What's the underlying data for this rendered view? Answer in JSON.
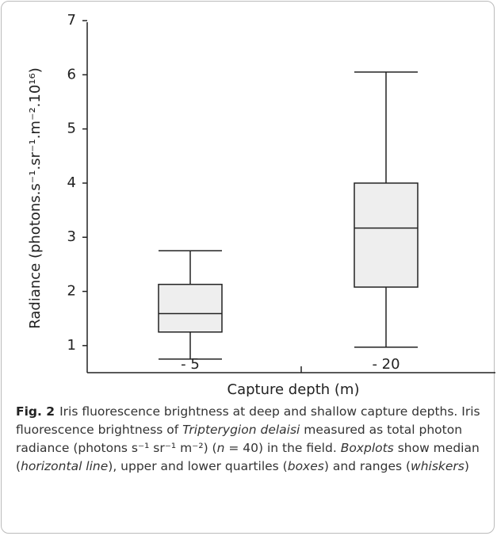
{
  "chart_data": {
    "type": "box",
    "ylabel": "Radiance (photons.s⁻¹.sr⁻¹.m⁻².10¹⁶)",
    "xlabel": "Capture depth (m)",
    "categories": [
      "- 5",
      "- 20"
    ],
    "boxes": [
      {
        "min": 0.75,
        "q1": 1.25,
        "median": 1.59,
        "q3": 2.13,
        "max": 2.75
      },
      {
        "min": 0.97,
        "q1": 2.08,
        "median": 3.17,
        "q3": 4.0,
        "max": 6.05
      }
    ],
    "color": "#eeeeee",
    "ylim": [
      0.5,
      7
    ],
    "yticks": [
      1,
      2,
      3,
      4,
      5,
      6,
      7
    ],
    "grid": false
  },
  "caption": {
    "label": "Fig. 2",
    "runs": [
      {
        "text": "Iris fluorescence brightness at deep and shallow capture depths. Iris fluorescence brightness of ",
        "italic": false
      },
      {
        "text": "Tripterygion delaisi",
        "italic": true
      },
      {
        "text": " measured as total photon radiance (photons s⁻¹ sr⁻¹ m⁻²) (",
        "italic": false
      },
      {
        "text": "n",
        "italic": true
      },
      {
        "text": " = 40) in the field. ",
        "italic": false
      },
      {
        "text": "Boxplots",
        "italic": true
      },
      {
        "text": " show median (",
        "italic": false
      },
      {
        "text": "horizontal line",
        "italic": true
      },
      {
        "text": "), upper and lower quartiles (",
        "italic": false
      },
      {
        "text": "boxes",
        "italic": true
      },
      {
        "text": ") and ranges (",
        "italic": false
      },
      {
        "text": "whiskers",
        "italic": true
      },
      {
        "text": ")",
        "italic": false
      }
    ]
  }
}
